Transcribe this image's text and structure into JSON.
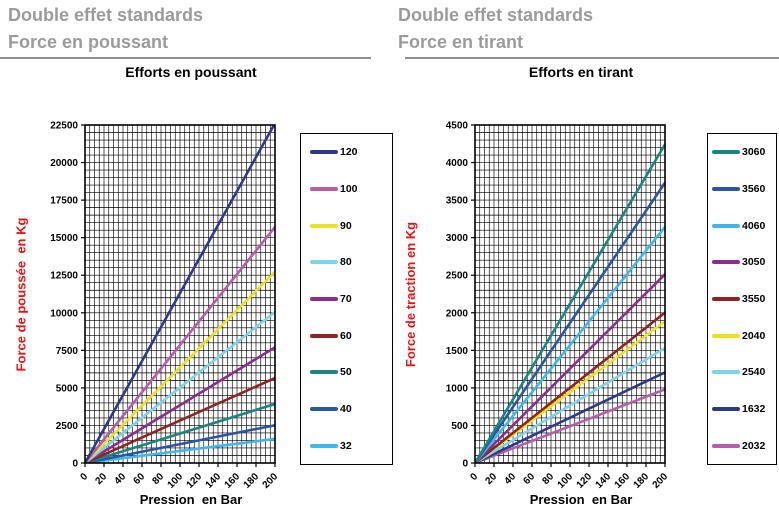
{
  "header_left": {
    "line1": "Double effet standards",
    "line2": "Force en poussant"
  },
  "header_right": {
    "line1": "Double effet standards",
    "line2": "Force en tirant"
  },
  "colors": {
    "header_gray": "#9B9B9B",
    "axis_title_red": "#EE1111",
    "grid_black": "#000000"
  },
  "chart_data": [
    {
      "type": "line",
      "title": "Efforts en poussant",
      "xlabel": "Pression  en Bar",
      "ylabel": "Force de poussée  en Kg",
      "xlim": [
        0,
        200
      ],
      "ylim": [
        0,
        22500
      ],
      "x_ticks": [
        0,
        20,
        40,
        60,
        80,
        100,
        120,
        140,
        160,
        180,
        200
      ],
      "y_ticks": [
        0,
        2500,
        5000,
        7500,
        10000,
        12500,
        15000,
        17500,
        20000,
        22500
      ],
      "x_minor_step": 5,
      "y_minor_step": 500,
      "grid": "on",
      "legend_position": "right",
      "x": [
        0,
        200
      ],
      "series": [
        {
          "name": "120",
          "color": "#2C3A8C",
          "values": [
            0,
            22619
          ]
        },
        {
          "name": "100",
          "color": "#B55CAD",
          "values": [
            0,
            15708
          ]
        },
        {
          "name": "90",
          "color": "#EFE01E",
          "values": [
            0,
            12723
          ]
        },
        {
          "name": "80",
          "color": "#7CD3EA",
          "values": [
            0,
            10053
          ]
        },
        {
          "name": "70",
          "color": "#8B2D8F",
          "values": [
            0,
            7697
          ]
        },
        {
          "name": "60",
          "color": "#8E2322",
          "values": [
            0,
            5655
          ]
        },
        {
          "name": "50",
          "color": "#1B857F",
          "values": [
            0,
            3927
          ]
        },
        {
          "name": "40",
          "color": "#2A56A6",
          "values": [
            0,
            2513
          ]
        },
        {
          "name": "32",
          "color": "#3DB7EE",
          "values": [
            0,
            1608
          ]
        }
      ]
    },
    {
      "type": "line",
      "title": "Efforts en tirant",
      "xlabel": "Pression  en Bar",
      "ylabel": "Force de traction en Kg",
      "xlim": [
        0,
        200
      ],
      "ylim": [
        0,
        4500
      ],
      "x_ticks": [
        0,
        20,
        40,
        60,
        80,
        100,
        120,
        140,
        160,
        180,
        200
      ],
      "y_ticks": [
        0,
        500,
        1000,
        1500,
        2000,
        2500,
        3000,
        3500,
        4000,
        4500
      ],
      "x_minor_step": 5,
      "y_minor_step": 100,
      "grid": "on",
      "legend_position": "right",
      "x": [
        0,
        200
      ],
      "series": [
        {
          "name": "3060",
          "color": "#1B857F",
          "values": [
            0,
            4241
          ]
        },
        {
          "name": "3560",
          "color": "#2A56A6",
          "values": [
            0,
            3731
          ]
        },
        {
          "name": "4060",
          "color": "#3DB7EE",
          "values": [
            0,
            3142
          ]
        },
        {
          "name": "3050",
          "color": "#8B2D8F",
          "values": [
            0,
            2513
          ]
        },
        {
          "name": "3550",
          "color": "#8E2322",
          "values": [
            0,
            2003
          ]
        },
        {
          "name": "2040",
          "color": "#EFE01E",
          "values": [
            0,
            1885
          ]
        },
        {
          "name": "2540",
          "color": "#7CD3EA",
          "values": [
            0,
            1532
          ]
        },
        {
          "name": "1632",
          "color": "#2C3A8C",
          "values": [
            0,
            1206
          ]
        },
        {
          "name": "2032",
          "color": "#B55CAD",
          "values": [
            0,
            980
          ]
        }
      ]
    }
  ]
}
